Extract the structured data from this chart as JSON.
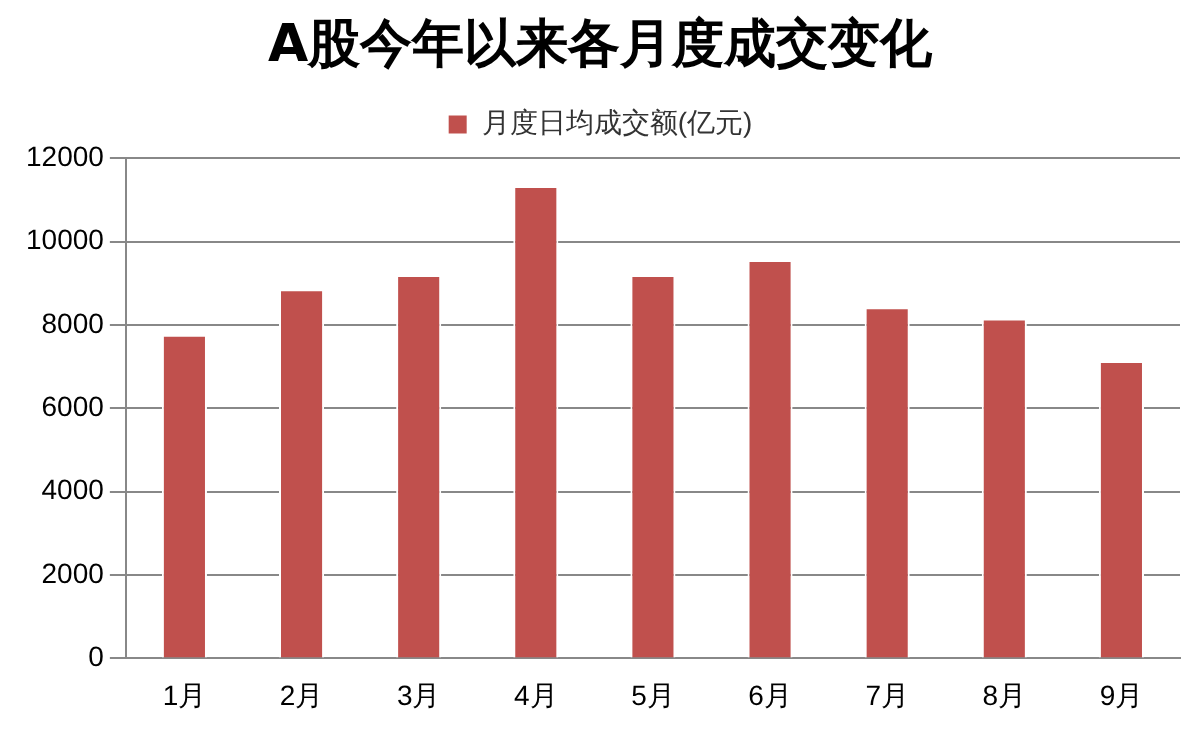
{
  "chart_data": {
    "type": "bar",
    "title": "A股今年以来各月度成交变化",
    "categories": [
      "1月",
      "2月",
      "3月",
      "4月",
      "5月",
      "6月",
      "7月",
      "8月",
      "9月"
    ],
    "series": [
      {
        "name": "月度日均成交额(亿元)",
        "color": "#c0504d",
        "values": [
          7770,
          8860,
          9200,
          11340,
          9200,
          9560,
          8430,
          8160,
          7140
        ]
      }
    ],
    "ylim": [
      0,
      12000
    ],
    "yticks": [
      0,
      2000,
      4000,
      6000,
      8000,
      10000,
      12000
    ],
    "grid": "y",
    "legend": "top"
  }
}
